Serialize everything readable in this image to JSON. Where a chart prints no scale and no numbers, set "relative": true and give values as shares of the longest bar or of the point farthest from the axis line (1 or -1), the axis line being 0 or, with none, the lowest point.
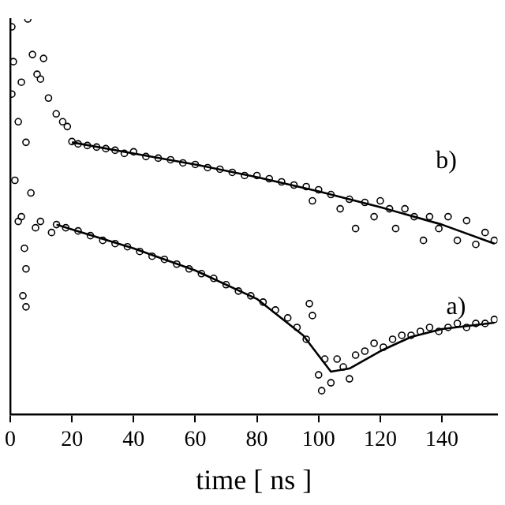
{
  "chart_data": {
    "type": "scatter",
    "xlabel": "time [ ns ]",
    "relative": true,
    "xlim": [
      0,
      158
    ],
    "xticks": [
      0,
      20,
      40,
      60,
      80,
      100,
      120,
      140
    ],
    "grid": false,
    "legend": false,
    "marker": "circle",
    "annotations": [
      "b)",
      "a)"
    ],
    "series": [
      {
        "type": "scatter",
        "color": "#000000",
        "x": [
          0.5,
          5.7,
          1,
          0.5,
          5.1,
          1.5,
          2.6,
          4.6,
          5.1,
          5.1,
          4.1,
          10.8,
          9.8,
          12.4,
          14.9,
          18.5,
          17,
          8.2,
          9.8,
          13.4,
          7.2,
          8.7,
          3.6,
          2.6,
          6.7,
          3.6
        ],
        "values": [
          0.98,
          1,
          0.892,
          0.81,
          0.688,
          0.592,
          0.488,
          0.42,
          0.368,
          0.272,
          0.3,
          0.9,
          0.848,
          0.8,
          0.76,
          0.728,
          0.74,
          0.472,
          0.488,
          0.46,
          0.91,
          0.86,
          0.84,
          0.74,
          0.56,
          0.5
        ]
      },
      {
        "type": "scatter",
        "color": "#000000",
        "x": [
          20,
          22,
          25,
          28,
          31,
          34,
          37,
          40,
          44,
          48,
          52,
          56,
          60,
          64,
          68,
          72,
          76,
          80,
          84,
          88,
          92,
          96,
          98,
          100,
          104,
          107,
          110,
          112,
          115,
          118,
          120,
          123,
          125,
          128,
          131,
          134,
          136,
          139,
          142,
          145,
          148,
          151,
          154,
          157
        ],
        "values": [
          0.69,
          0.684,
          0.68,
          0.676,
          0.672,
          0.668,
          0.66,
          0.664,
          0.652,
          0.648,
          0.644,
          0.636,
          0.632,
          0.624,
          0.62,
          0.612,
          0.604,
          0.604,
          0.596,
          0.588,
          0.58,
          0.576,
          0.54,
          0.568,
          0.556,
          0.52,
          0.544,
          0.47,
          0.536,
          0.5,
          0.54,
          0.52,
          0.47,
          0.52,
          0.5,
          0.44,
          0.5,
          0.47,
          0.5,
          0.44,
          0.49,
          0.43,
          0.46,
          0.44
        ]
      },
      {
        "type": "scatter",
        "color": "#000000",
        "x": [
          15,
          18,
          22,
          26,
          30,
          34,
          38,
          42,
          46,
          50,
          54,
          58,
          62,
          66,
          70,
          74,
          78,
          82,
          86,
          90,
          93,
          96,
          97,
          98,
          100,
          101,
          102,
          104,
          106,
          108,
          110,
          112,
          115,
          118,
          121,
          124,
          127,
          130,
          133,
          136,
          139,
          142,
          145,
          148,
          151,
          154,
          157
        ],
        "values": [
          0.48,
          0.472,
          0.464,
          0.452,
          0.44,
          0.432,
          0.424,
          0.412,
          0.4,
          0.392,
          0.38,
          0.368,
          0.356,
          0.344,
          0.328,
          0.312,
          0.3,
          0.284,
          0.264,
          0.244,
          0.22,
          0.19,
          0.28,
          0.25,
          0.1,
          0.06,
          0.14,
          0.08,
          0.14,
          0.12,
          0.09,
          0.15,
          0.16,
          0.18,
          0.17,
          0.19,
          0.2,
          0.2,
          0.21,
          0.22,
          0.21,
          0.22,
          0.23,
          0.22,
          0.23,
          0.23,
          0.24
        ]
      },
      {
        "type": "line",
        "color": "#000000",
        "marker": "none",
        "x": [
          20,
          40,
          60,
          80,
          100,
          120,
          140,
          157
        ],
        "values": [
          0.688,
          0.66,
          0.632,
          0.6,
          0.564,
          0.524,
          0.48,
          0.432
        ]
      },
      {
        "type": "line",
        "color": "#000000",
        "marker": "none",
        "x": [
          15,
          20,
          40,
          60,
          80,
          95,
          104,
          110,
          120,
          130,
          140,
          157
        ],
        "values": [
          0.48,
          0.468,
          0.42,
          0.364,
          0.292,
          0.2,
          0.108,
          0.116,
          0.16,
          0.196,
          0.216,
          0.232
        ]
      }
    ]
  }
}
